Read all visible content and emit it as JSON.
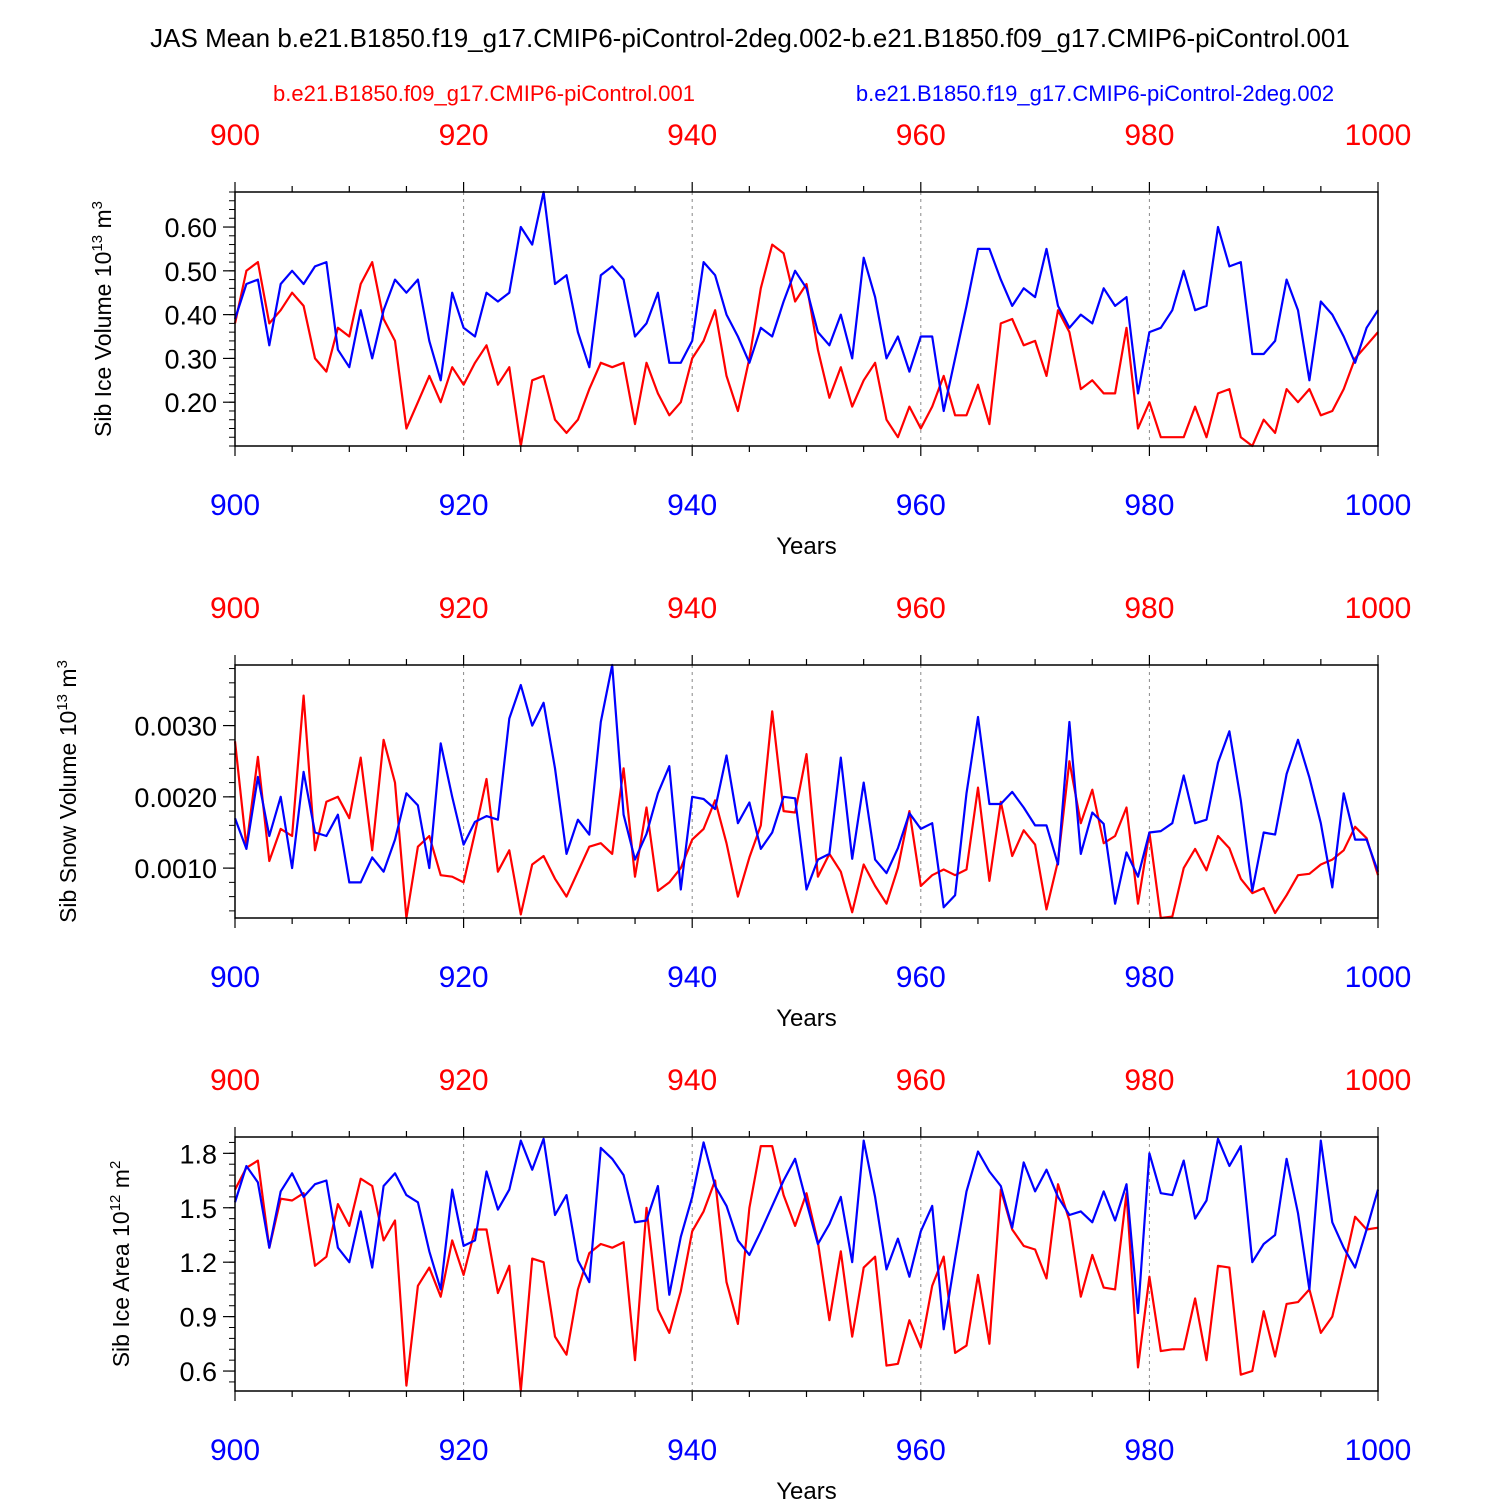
{
  "title": "JAS Mean b.e21.B1850.f19_g17.CMIP6-piControl-2deg.002-b.e21.B1850.f09_g17.CMIP6-piControl.001",
  "legend": {
    "red_label": "b.e21.B1850.f09_g17.CMIP6-piControl.001",
    "blue_label": "b.e21.B1850.f19_g17.CMIP6-piControl-2deg.002"
  },
  "colors": {
    "red": "#ff0000",
    "blue": "#0000ff",
    "axis": "#000000",
    "grid": "#888888"
  },
  "chart_data": [
    {
      "type": "line",
      "ylabel_main": "Sib Ice Volume 10",
      "ylabel_exp": "13",
      "ylabel_unit": " m",
      "ylabel_unit_exp": "3",
      "xlabel": "Years",
      "xlim": [
        900,
        1000
      ],
      "ylim": [
        0.1,
        0.68
      ],
      "yticks": [
        0.2,
        0.3,
        0.4,
        0.5,
        0.6
      ],
      "ytick_labels": [
        "0.20",
        "0.30",
        "0.40",
        "0.50",
        "0.60"
      ],
      "xticks": [
        900,
        920,
        940,
        960,
        980,
        1000
      ],
      "xtick_labels": [
        "900",
        "920",
        "940",
        "960",
        "980",
        "1000"
      ],
      "series": [
        {
          "name": "b.e21.B1850.f09_g17.CMIP6-piControl.001",
          "color": "red",
          "x_start": 900,
          "values": [
            0.38,
            0.5,
            0.52,
            0.38,
            0.41,
            0.45,
            0.42,
            0.3,
            0.27,
            0.37,
            0.35,
            0.47,
            0.52,
            0.39,
            0.34,
            0.14,
            0.2,
            0.26,
            0.2,
            0.28,
            0.24,
            0.29,
            0.33,
            0.24,
            0.28,
            0.1,
            0.25,
            0.26,
            0.16,
            0.13,
            0.16,
            0.23,
            0.29,
            0.28,
            0.29,
            0.15,
            0.29,
            0.22,
            0.17,
            0.2,
            0.3,
            0.34,
            0.41,
            0.26,
            0.18,
            0.3,
            0.46,
            0.56,
            0.54,
            0.43,
            0.47,
            0.32,
            0.21,
            0.28,
            0.19,
            0.25,
            0.29,
            0.16,
            0.12,
            0.19,
            0.14,
            0.19,
            0.26,
            0.17,
            0.17,
            0.24,
            0.15,
            0.38,
            0.39,
            0.33,
            0.34,
            0.26,
            0.41,
            0.36,
            0.23,
            0.25,
            0.22,
            0.22,
            0.37,
            0.14,
            0.2,
            0.12,
            0.12,
            0.12,
            0.19,
            0.12,
            0.22,
            0.23,
            0.12,
            0.1,
            0.16,
            0.13,
            0.23,
            0.2,
            0.23,
            0.17,
            0.18,
            0.23,
            0.3,
            0.33,
            0.36
          ]
        },
        {
          "name": "b.e21.B1850.f19_g17.CMIP6-piControl-2deg.002",
          "color": "blue",
          "x_start": 900,
          "values": [
            0.39,
            0.47,
            0.48,
            0.33,
            0.47,
            0.5,
            0.47,
            0.51,
            0.52,
            0.32,
            0.28,
            0.41,
            0.3,
            0.41,
            0.48,
            0.45,
            0.48,
            0.34,
            0.25,
            0.45,
            0.37,
            0.35,
            0.45,
            0.43,
            0.45,
            0.6,
            0.56,
            0.68,
            0.47,
            0.49,
            0.36,
            0.28,
            0.49,
            0.51,
            0.48,
            0.35,
            0.38,
            0.45,
            0.29,
            0.29,
            0.34,
            0.52,
            0.49,
            0.4,
            0.35,
            0.29,
            0.37,
            0.35,
            0.43,
            0.5,
            0.46,
            0.36,
            0.33,
            0.4,
            0.3,
            0.53,
            0.44,
            0.3,
            0.35,
            0.27,
            0.35,
            0.35,
            0.18,
            0.3,
            0.42,
            0.55,
            0.55,
            0.48,
            0.42,
            0.46,
            0.44,
            0.55,
            0.42,
            0.37,
            0.4,
            0.38,
            0.46,
            0.42,
            0.44,
            0.22,
            0.36,
            0.37,
            0.41,
            0.5,
            0.41,
            0.42,
            0.6,
            0.51,
            0.52,
            0.31,
            0.31,
            0.34,
            0.48,
            0.41,
            0.25,
            0.43,
            0.4,
            0.35,
            0.29,
            0.37,
            0.41
          ]
        }
      ]
    },
    {
      "type": "line",
      "ylabel_main": "Sib Snow Volume 10",
      "ylabel_exp": "13",
      "ylabel_unit": " m",
      "ylabel_unit_exp": "3",
      "xlabel": "Years",
      "xlim": [
        900,
        1000
      ],
      "ylim": [
        0.0003,
        0.00385
      ],
      "yticks": [
        0.001,
        0.002,
        0.003
      ],
      "ytick_labels": [
        "0.0010",
        "0.0020",
        "0.0030"
      ],
      "xticks": [
        900,
        920,
        940,
        960,
        980,
        1000
      ],
      "xtick_labels": [
        "900",
        "920",
        "940",
        "960",
        "980",
        "1000"
      ],
      "series": [
        {
          "name": "b.e21.B1850.f09_g17.CMIP6-piControl.001",
          "color": "red",
          "x_start": 900,
          "values": [
            0.00278,
            0.0013,
            0.00256,
            0.0011,
            0.00155,
            0.00145,
            0.00342,
            0.00125,
            0.00193,
            0.002,
            0.0017,
            0.00255,
            0.00125,
            0.0028,
            0.0022,
            0.0003,
            0.0013,
            0.00145,
            0.0009,
            0.00088,
            0.0008,
            0.0015,
            0.00225,
            0.00095,
            0.00125,
            0.00035,
            0.00105,
            0.00117,
            0.00085,
            0.0006,
            0.00095,
            0.0013,
            0.00135,
            0.0012,
            0.0024,
            0.00088,
            0.00185,
            0.00068,
            0.0008,
            0.001,
            0.0014,
            0.00155,
            0.00195,
            0.00135,
            0.0006,
            0.00115,
            0.0016,
            0.0032,
            0.0018,
            0.00178,
            0.0026,
            0.00088,
            0.0012,
            0.00095,
            0.00038,
            0.00105,
            0.00075,
            0.0005,
            0.001,
            0.0018,
            0.00075,
            0.0009,
            0.00098,
            0.0009,
            0.00098,
            0.00213,
            0.00082,
            0.00193,
            0.00117,
            0.00153,
            0.00133,
            0.00042,
            0.0011,
            0.0025,
            0.00163,
            0.0021,
            0.00135,
            0.00145,
            0.00185,
            0.0005,
            0.0015,
            0.0003,
            0.00032,
            0.001,
            0.00127,
            0.00097,
            0.00145,
            0.00128,
            0.00085,
            0.00065,
            0.00072,
            0.00037,
            0.00062,
            0.0009,
            0.00092,
            0.00105,
            0.00112,
            0.00125,
            0.00158,
            0.00142,
            0.0009
          ]
        },
        {
          "name": "b.e21.B1850.f19_g17.CMIP6-piControl-2deg.002",
          "color": "blue",
          "x_start": 900,
          "values": [
            0.0017,
            0.00127,
            0.00228,
            0.00145,
            0.002,
            0.001,
            0.00235,
            0.0015,
            0.00145,
            0.00175,
            0.0008,
            0.0008,
            0.00115,
            0.00095,
            0.0014,
            0.00205,
            0.00188,
            0.001,
            0.00275,
            0.002,
            0.00133,
            0.00165,
            0.00173,
            0.00168,
            0.0031,
            0.00357,
            0.003,
            0.00332,
            0.0024,
            0.0012,
            0.00168,
            0.00147,
            0.00305,
            0.00385,
            0.00175,
            0.00112,
            0.00148,
            0.00205,
            0.00243,
            0.0007,
            0.002,
            0.00197,
            0.00183,
            0.00258,
            0.00163,
            0.00192,
            0.00127,
            0.0015,
            0.002,
            0.00198,
            0.0007,
            0.00112,
            0.0012,
            0.00255,
            0.00113,
            0.0022,
            0.00112,
            0.00093,
            0.00128,
            0.00177,
            0.00155,
            0.00163,
            0.00045,
            0.00062,
            0.00205,
            0.00312,
            0.0019,
            0.0019,
            0.00207,
            0.00185,
            0.0016,
            0.0016,
            0.00105,
            0.00305,
            0.0012,
            0.00178,
            0.00162,
            0.0005,
            0.00122,
            0.00088,
            0.0015,
            0.00152,
            0.00163,
            0.0023,
            0.00163,
            0.00168,
            0.00248,
            0.00292,
            0.00195,
            0.00068,
            0.0015,
            0.00147,
            0.00232,
            0.0028,
            0.00227,
            0.00163,
            0.00073,
            0.00205,
            0.0014,
            0.0014,
            0.00095
          ]
        }
      ]
    },
    {
      "type": "line",
      "ylabel_main": "Sib Ice Area 10",
      "ylabel_exp": "12",
      "ylabel_unit": " m",
      "ylabel_unit_exp": "2",
      "xlabel": "Years",
      "xlim": [
        900,
        1000
      ],
      "ylim": [
        0.49,
        1.89
      ],
      "yticks": [
        0.6,
        0.9,
        1.2,
        1.5,
        1.8
      ],
      "ytick_labels": [
        "0.6",
        "0.9",
        "1.2",
        "1.5",
        "1.8"
      ],
      "xticks": [
        900,
        920,
        940,
        960,
        980,
        1000
      ],
      "xtick_labels": [
        "900",
        "920",
        "940",
        "960",
        "980",
        "1000"
      ],
      "series": [
        {
          "name": "b.e21.B1850.f09_g17.CMIP6-piControl.001",
          "color": "red",
          "x_start": 900,
          "values": [
            1.6,
            1.72,
            1.76,
            1.28,
            1.55,
            1.54,
            1.58,
            1.18,
            1.23,
            1.52,
            1.4,
            1.66,
            1.62,
            1.32,
            1.43,
            0.52,
            1.07,
            1.17,
            1.01,
            1.32,
            1.13,
            1.38,
            1.38,
            1.03,
            1.18,
            0.49,
            1.22,
            1.2,
            0.79,
            0.69,
            1.05,
            1.25,
            1.3,
            1.28,
            1.31,
            0.66,
            1.5,
            0.94,
            0.81,
            1.04,
            1.37,
            1.48,
            1.65,
            1.09,
            0.86,
            1.5,
            1.84,
            1.84,
            1.57,
            1.4,
            1.58,
            1.31,
            0.88,
            1.26,
            0.79,
            1.17,
            1.23,
            0.63,
            0.64,
            0.88,
            0.73,
            1.07,
            1.23,
            0.7,
            0.74,
            1.13,
            0.75,
            1.6,
            1.38,
            1.29,
            1.27,
            1.11,
            1.63,
            1.43,
            1.01,
            1.24,
            1.06,
            1.05,
            1.58,
            0.62,
            1.12,
            0.71,
            0.72,
            0.72,
            1.0,
            0.66,
            1.18,
            1.17,
            0.58,
            0.6,
            0.93,
            0.68,
            0.97,
            0.98,
            1.05,
            0.81,
            0.9,
            1.17,
            1.45,
            1.38,
            1.39
          ]
        },
        {
          "name": "b.e21.B1850.f19_g17.CMIP6-piControl-2deg.002",
          "color": "blue",
          "x_start": 900,
          "values": [
            1.53,
            1.73,
            1.64,
            1.28,
            1.59,
            1.69,
            1.56,
            1.63,
            1.65,
            1.28,
            1.2,
            1.48,
            1.17,
            1.62,
            1.69,
            1.57,
            1.53,
            1.26,
            1.05,
            1.6,
            1.29,
            1.32,
            1.7,
            1.49,
            1.6,
            1.87,
            1.71,
            1.88,
            1.46,
            1.57,
            1.21,
            1.09,
            1.83,
            1.77,
            1.68,
            1.42,
            1.43,
            1.62,
            1.02,
            1.34,
            1.56,
            1.86,
            1.62,
            1.51,
            1.32,
            1.24,
            1.37,
            1.51,
            1.65,
            1.77,
            1.53,
            1.3,
            1.41,
            1.56,
            1.2,
            1.87,
            1.56,
            1.16,
            1.33,
            1.12,
            1.37,
            1.51,
            0.83,
            1.22,
            1.59,
            1.81,
            1.7,
            1.62,
            1.39,
            1.75,
            1.59,
            1.71,
            1.56,
            1.46,
            1.48,
            1.42,
            1.59,
            1.43,
            1.63,
            0.92,
            1.8,
            1.58,
            1.57,
            1.76,
            1.44,
            1.54,
            1.88,
            1.73,
            1.84,
            1.2,
            1.3,
            1.35,
            1.77,
            1.47,
            1.05,
            1.87,
            1.42,
            1.28,
            1.17,
            1.38,
            1.6
          ]
        }
      ]
    }
  ]
}
